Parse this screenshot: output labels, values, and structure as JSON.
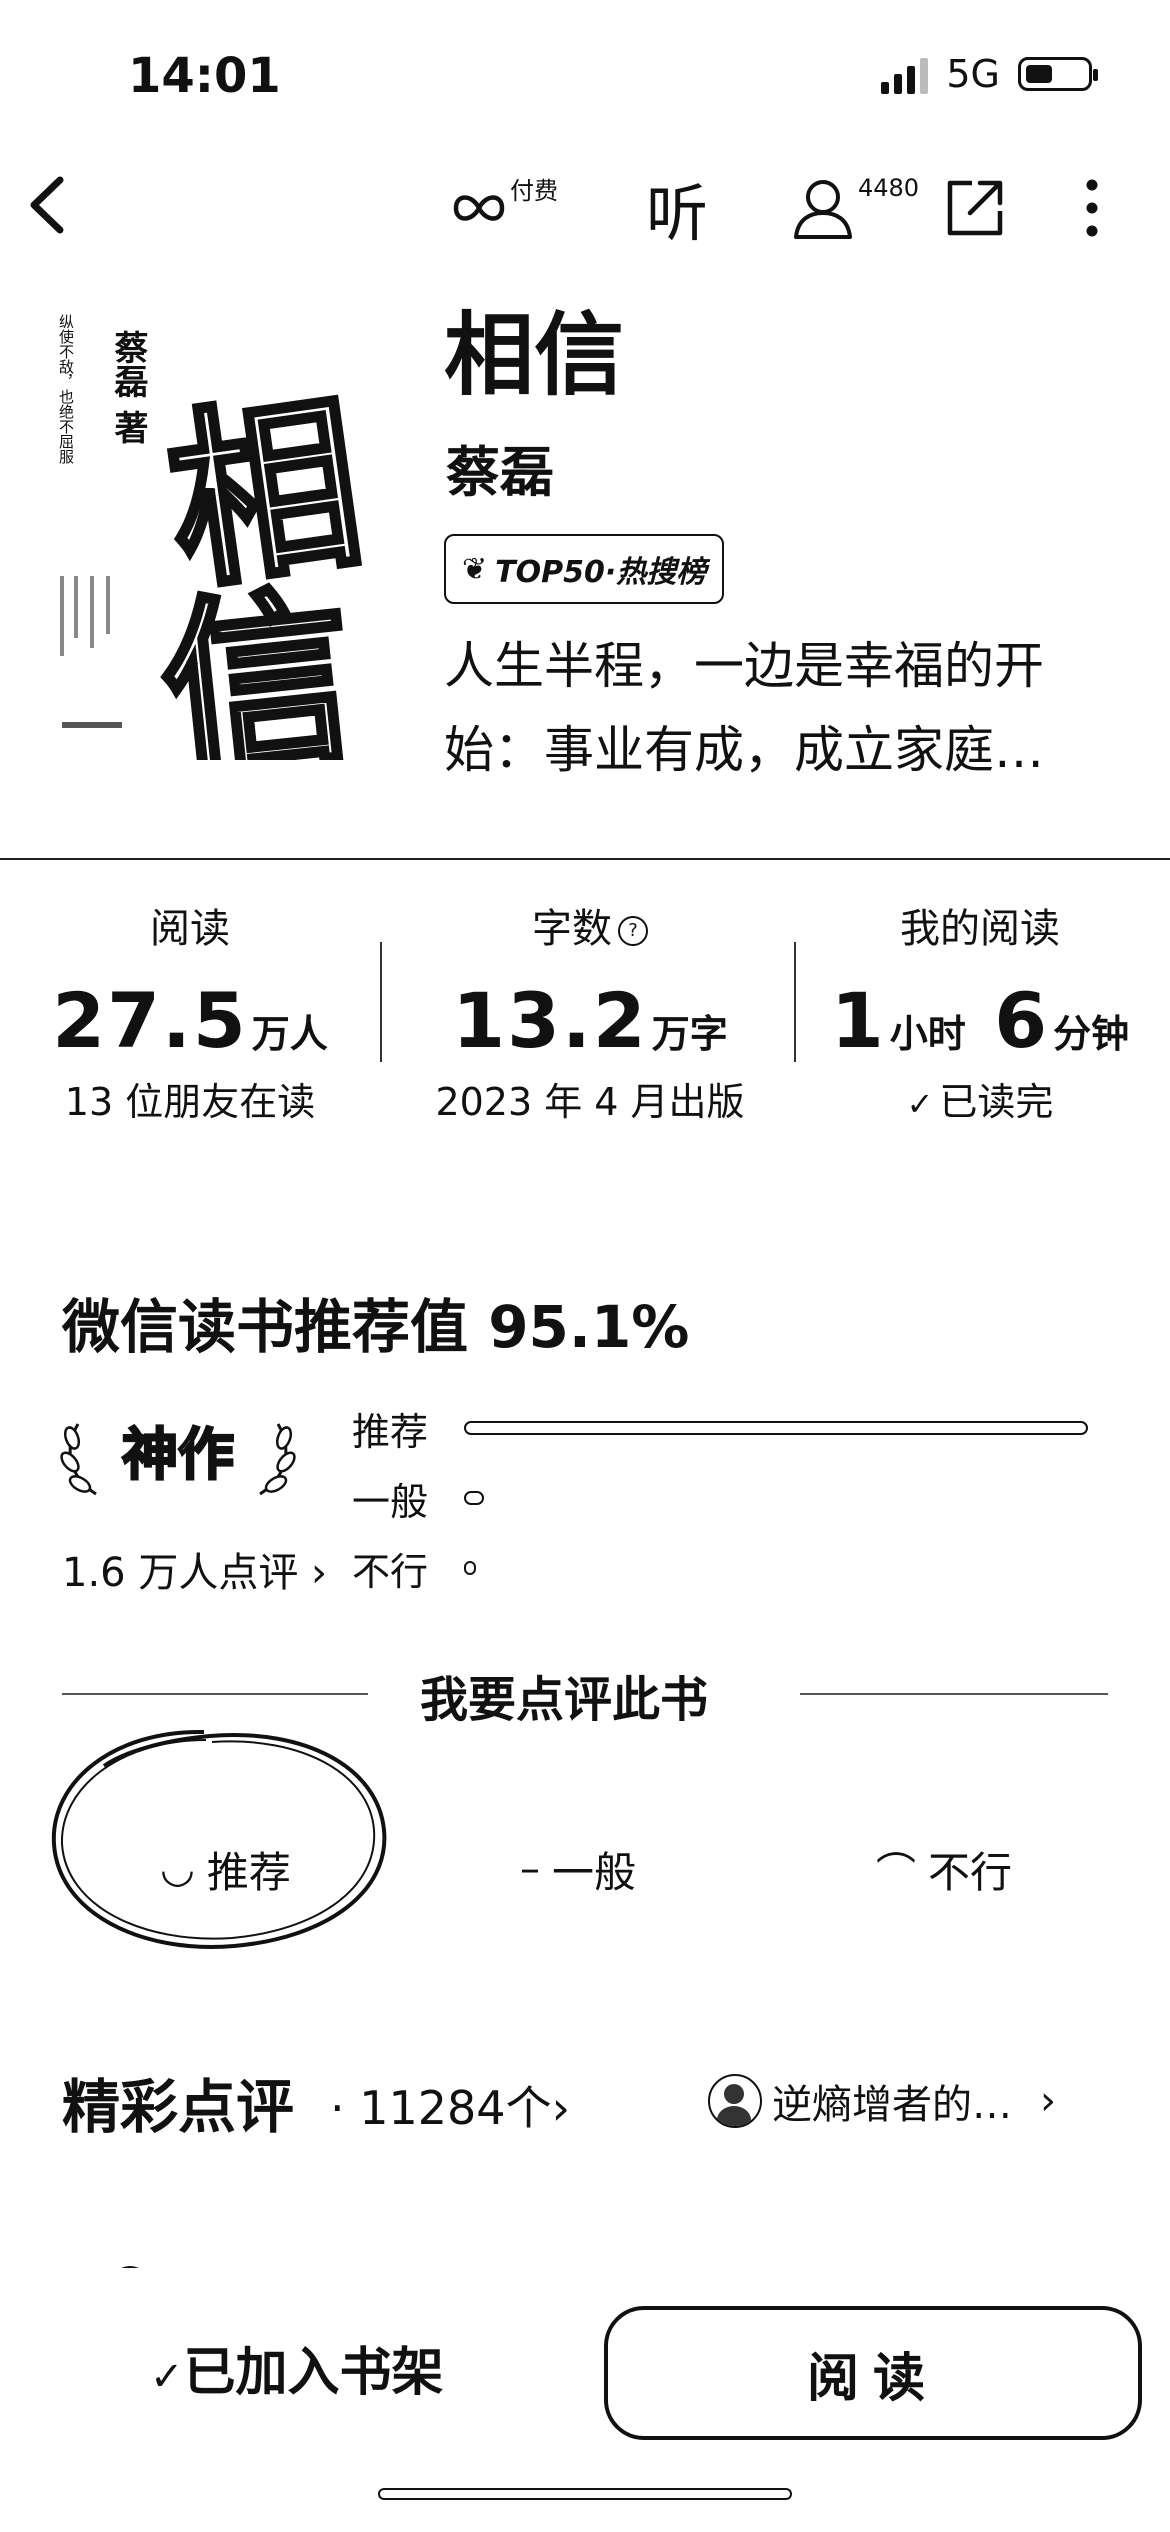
{
  "status": {
    "time": "14:01",
    "network": "5G"
  },
  "nav": {
    "back_icon": "chevron-left-icon",
    "paid_label": "付费",
    "listen_label": "听",
    "reader_count": "4480",
    "share_icon": "share-icon",
    "more_icon": "more-vertical-icon"
  },
  "book": {
    "title": "相信",
    "author": "蔡磊",
    "badge": "TOP50·热搜榜",
    "intro": "人生半程，一边是幸福的开始：事业有成，成立家庭…",
    "cover": {
      "big_title": "相信",
      "author": "蔡磊 著",
      "tagline": "纵使不敌，也绝不屈服"
    }
  },
  "stats": {
    "read": {
      "label": "阅读",
      "value": "27.5",
      "unit": "万人",
      "sub": "13 位朋友在读"
    },
    "words": {
      "label": "字数",
      "help": "?",
      "value": "13.2",
      "unit": "万字",
      "sub": "2023 年 4 月出版"
    },
    "mine": {
      "label": "我的阅读",
      "hours": "1",
      "hours_unit": "小时",
      "minutes": "6",
      "minutes_unit": "分钟",
      "sub": "已读完"
    }
  },
  "recommendation": {
    "title": "微信读书推荐值 95.1%",
    "tier": "神作",
    "count": "1.6 万人点评",
    "rows": [
      {
        "label": "推荐",
        "fraction": 0.951
      },
      {
        "label": "一般",
        "fraction": 0.03
      },
      {
        "label": "不行",
        "fraction": 0.01
      }
    ]
  },
  "review_prompt": {
    "title": "我要点评此书",
    "options": [
      {
        "face": "◡",
        "label": "推荐"
      },
      {
        "face": "–",
        "label": "一般"
      },
      {
        "face": "⌒",
        "label": "不行"
      }
    ]
  },
  "reviews": {
    "title": "精彩点评",
    "count": "· 11284个",
    "featured_user": "逆熵增者的…"
  },
  "bottom": {
    "shelf_label": "已加入书架",
    "read_label": "阅读"
  }
}
